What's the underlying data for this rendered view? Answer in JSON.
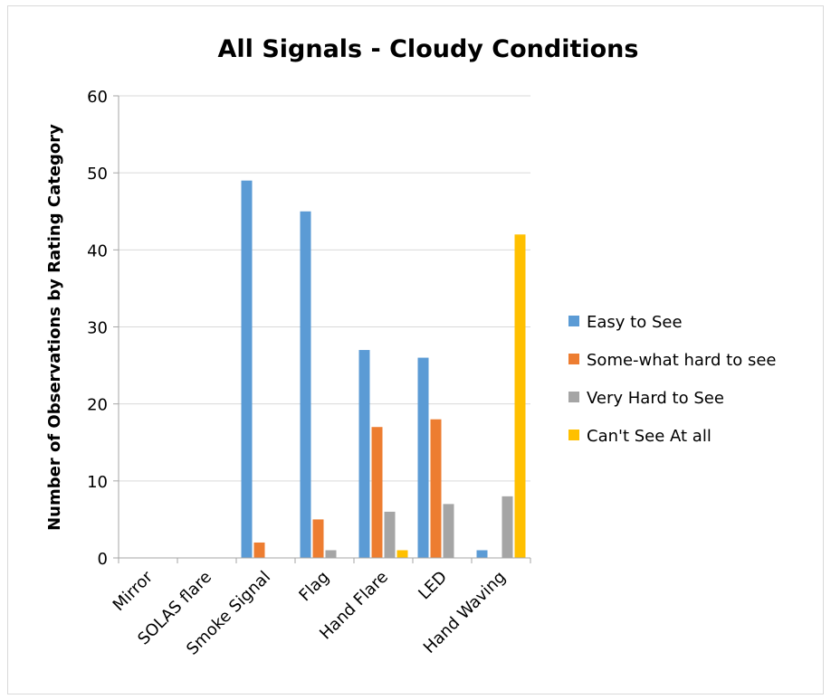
{
  "chart_data": {
    "type": "bar",
    "title": "All Signals - Cloudy Conditions",
    "xlabel": "",
    "ylabel": "Number of Observations by Rating Category",
    "ylim": [
      0,
      60
    ],
    "yticks": [
      0,
      10,
      20,
      30,
      40,
      50,
      60
    ],
    "grid": true,
    "legend_position": "right",
    "categories": [
      "Mirror",
      "SOLAS flare",
      "Smoke Signal",
      "Flag",
      "Hand Flare",
      "LED",
      "Hand Waving"
    ],
    "series": [
      {
        "name": "Easy to See",
        "color": "#5b9bd5",
        "values": [
          0,
          0,
          49,
          45,
          27,
          26,
          1
        ]
      },
      {
        "name": "Some-what hard to see",
        "color": "#ed7d31",
        "values": [
          0,
          0,
          2,
          5,
          17,
          18,
          0
        ]
      },
      {
        "name": "Very Hard to See",
        "color": "#a5a5a5",
        "values": [
          0,
          0,
          0,
          1,
          6,
          7,
          8
        ]
      },
      {
        "name": "Can't See At all",
        "color": "#ffc000",
        "values": [
          0,
          0,
          0,
          0,
          1,
          0,
          42
        ]
      }
    ]
  }
}
